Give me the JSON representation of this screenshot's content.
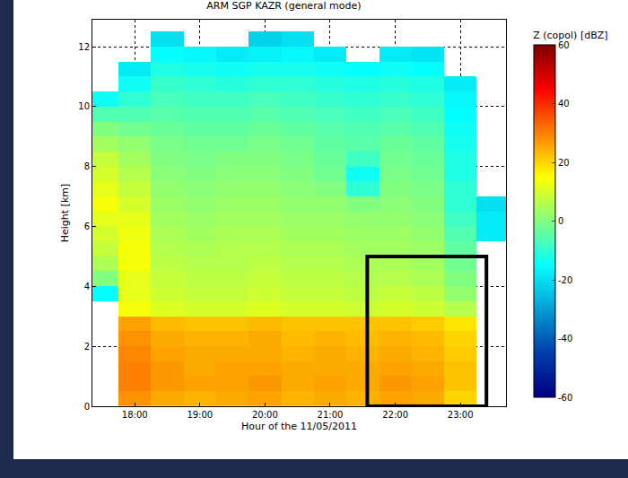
{
  "chart_data": {
    "type": "heatmap",
    "title": "ARM SGP KAZR (general mode)",
    "x_label": "Hour of the 11/05/2011",
    "y_label": "Height [km]",
    "x": [
      17.5,
      18.0,
      18.5,
      19.0,
      19.5,
      20.0,
      20.5,
      21.0,
      21.5,
      22.0,
      22.5,
      23.0,
      23.5
    ],
    "y": [
      0.25,
      0.75,
      1.25,
      1.75,
      2.25,
      2.75,
      3.25,
      3.75,
      4.25,
      4.75,
      5.25,
      5.75,
      6.25,
      6.75,
      7.25,
      7.75,
      8.25,
      8.75,
      9.25,
      9.75,
      10.25,
      10.75,
      11.25,
      11.75,
      12.25,
      12.75
    ],
    "values": [
      [
        null,
        null,
        null,
        null,
        null,
        null,
        null,
        -15,
        0,
        5,
        8,
        10,
        12,
        14,
        12,
        10,
        8,
        4,
        0,
        -6,
        -14,
        null,
        null,
        null,
        null,
        null
      ],
      [
        28,
        30,
        30,
        29,
        28,
        26,
        14,
        12,
        12,
        14,
        14,
        13,
        12,
        10,
        8,
        6,
        4,
        2,
        -2,
        -6,
        -10,
        -14,
        -18,
        null,
        null,
        null
      ],
      [
        25,
        27,
        27,
        26,
        25,
        23,
        11,
        9,
        8,
        7,
        6,
        5,
        4,
        3,
        2,
        1,
        0,
        -1,
        -3,
        -5,
        -7,
        -9,
        -12,
        -15,
        -20,
        null
      ],
      [
        24,
        26,
        25,
        25,
        24,
        22,
        10,
        8,
        7,
        6,
        5,
        4,
        3,
        2,
        1,
        0,
        -1,
        -2,
        -4,
        -6,
        -8,
        -10,
        -13,
        -16,
        null,
        null
      ],
      [
        25,
        26,
        26,
        25,
        24,
        22,
        10,
        8,
        7,
        6,
        6,
        5,
        4,
        3,
        2,
        1,
        0,
        -2,
        -4,
        -6,
        -8,
        -11,
        -14,
        -18,
        null,
        null
      ],
      [
        26,
        27,
        26,
        25,
        25,
        23,
        11,
        9,
        8,
        7,
        6,
        5,
        4,
        3,
        2,
        1,
        0,
        -1,
        -3,
        -5,
        -7,
        -10,
        -13,
        -17,
        -22,
        null
      ],
      [
        24,
        25,
        25,
        24,
        23,
        22,
        10,
        8,
        7,
        6,
        5,
        4,
        3,
        2,
        1,
        0,
        -1,
        -2,
        -4,
        -6,
        -8,
        -10,
        -13,
        -16,
        -20,
        null
      ],
      [
        25,
        26,
        25,
        25,
        24,
        22,
        10,
        8,
        7,
        6,
        5,
        4,
        3,
        2,
        0,
        -2,
        -3,
        -4,
        -5,
        -7,
        -9,
        -11,
        -14,
        -18,
        null,
        null
      ],
      [
        24,
        25,
        25,
        24,
        23,
        22,
        9,
        7,
        6,
        5,
        4,
        3,
        2,
        0,
        -10,
        -14,
        -8,
        -5,
        -6,
        -8,
        -10,
        -12,
        -15,
        null,
        null,
        null
      ],
      [
        26,
        27,
        26,
        25,
        24,
        22,
        10,
        8,
        6,
        5,
        4,
        3,
        2,
        1,
        0,
        -1,
        -2,
        -3,
        -5,
        -7,
        -9,
        -11,
        -14,
        -18,
        null,
        null
      ],
      [
        25,
        26,
        25,
        24,
        23,
        21,
        9,
        7,
        5,
        4,
        3,
        2,
        1,
        0,
        -1,
        -2,
        -3,
        -4,
        -6,
        -8,
        -10,
        -12,
        -15,
        -19,
        null,
        null
      ],
      [
        20,
        22,
        22,
        21,
        20,
        18,
        6,
        2,
        0,
        -2,
        -4,
        -6,
        -8,
        -10,
        -10,
        -12,
        -12,
        -13,
        -14,
        -15,
        -16,
        -18,
        null,
        null,
        null,
        null
      ],
      [
        null,
        null,
        null,
        null,
        null,
        null,
        null,
        null,
        null,
        null,
        null,
        -18,
        -18,
        -20,
        null,
        null,
        null,
        null,
        null,
        null,
        null,
        null,
        null,
        null,
        null,
        null
      ]
    ],
    "xlim": [
      17.35,
      23.7
    ],
    "ylim": [
      0,
      12.9
    ],
    "xticks": [
      {
        "value": 18,
        "label": "18:00"
      },
      {
        "value": 19,
        "label": "19:00"
      },
      {
        "value": 20,
        "label": "20:00"
      },
      {
        "value": 21,
        "label": "21:00"
      },
      {
        "value": 22,
        "label": "22:00"
      },
      {
        "value": 23,
        "label": "23:00"
      }
    ],
    "yticks": [
      0,
      2,
      4,
      6,
      8,
      10,
      12
    ],
    "grid": true,
    "color": "Jet",
    "colorbar": {
      "title": "Z (copol) [dBZ]",
      "range": [
        -60,
        60
      ],
      "ticks": [
        -60,
        -40,
        -20,
        0,
        20,
        40,
        60
      ]
    },
    "highlight_box": {
      "x": [
        21.57,
        23.4
      ],
      "y": [
        0,
        5
      ]
    }
  }
}
